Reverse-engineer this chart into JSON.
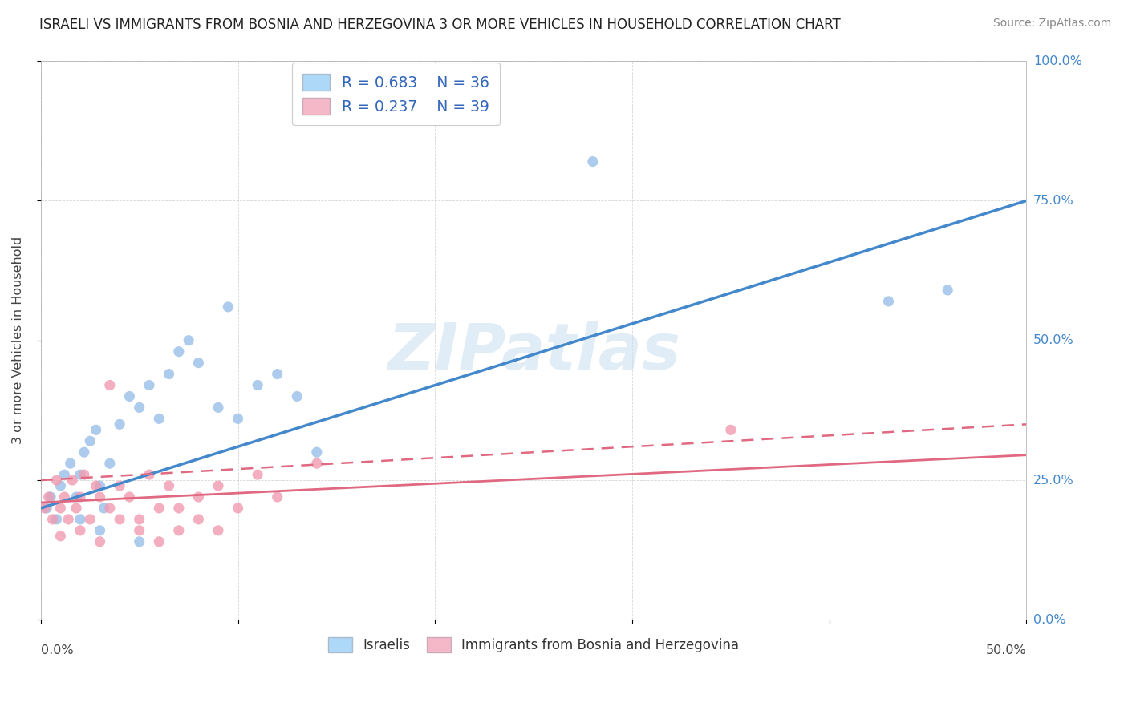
{
  "title": "ISRAELI VS IMMIGRANTS FROM BOSNIA AND HERZEGOVINA 3 OR MORE VEHICLES IN HOUSEHOLD CORRELATION CHART",
  "source": "Source: ZipAtlas.com",
  "ylabel": "3 or more Vehicles in Household",
  "ytick_labels": [
    "0.0%",
    "25.0%",
    "50.0%",
    "75.0%",
    "100.0%"
  ],
  "ytick_values": [
    0.0,
    25.0,
    50.0,
    75.0,
    100.0
  ],
  "xmin": 0.0,
  "xmax": 50.0,
  "ymin": 0.0,
  "ymax": 100.0,
  "legend_r1": "R = 0.683",
  "legend_n1": "N = 36",
  "legend_r2": "R = 0.237",
  "legend_n2": "N = 39",
  "blue_color": "#add8f7",
  "pink_color": "#f4b8c8",
  "blue_line_color": "#4488cc",
  "pink_line_color": "#e06880",
  "blue_scatter_color": "#99bfe8",
  "pink_scatter_color": "#f09ab0",
  "israelis_x": [
    0.3,
    0.5,
    0.8,
    1.0,
    1.2,
    1.5,
    1.8,
    2.0,
    2.2,
    2.5,
    2.8,
    3.0,
    3.2,
    3.5,
    4.0,
    4.5,
    5.0,
    5.5,
    6.0,
    6.5,
    7.0,
    8.0,
    9.0,
    10.0,
    11.0,
    12.0,
    13.0,
    14.0,
    28.0,
    43.0,
    46.0,
    5.0,
    3.0,
    7.5,
    9.5,
    2.0
  ],
  "israelis_y": [
    20.0,
    22.0,
    18.0,
    24.0,
    26.0,
    28.0,
    22.0,
    26.0,
    30.0,
    32.0,
    34.0,
    24.0,
    20.0,
    28.0,
    35.0,
    40.0,
    38.0,
    42.0,
    36.0,
    44.0,
    48.0,
    46.0,
    38.0,
    36.0,
    42.0,
    44.0,
    40.0,
    30.0,
    82.0,
    57.0,
    59.0,
    14.0,
    16.0,
    50.0,
    56.0,
    18.0
  ],
  "bosnia_x": [
    0.2,
    0.4,
    0.6,
    0.8,
    1.0,
    1.2,
    1.4,
    1.6,
    1.8,
    2.0,
    2.2,
    2.5,
    2.8,
    3.0,
    3.5,
    4.0,
    4.5,
    5.0,
    5.5,
    6.0,
    6.5,
    7.0,
    8.0,
    9.0,
    10.0,
    11.0,
    12.0,
    1.0,
    2.0,
    3.0,
    4.0,
    5.0,
    6.0,
    7.0,
    8.0,
    9.0,
    35.0,
    14.0,
    3.5
  ],
  "bosnia_y": [
    20.0,
    22.0,
    18.0,
    25.0,
    20.0,
    22.0,
    18.0,
    25.0,
    20.0,
    22.0,
    26.0,
    18.0,
    24.0,
    22.0,
    20.0,
    24.0,
    22.0,
    18.0,
    26.0,
    20.0,
    24.0,
    20.0,
    22.0,
    24.0,
    20.0,
    26.0,
    22.0,
    15.0,
    16.0,
    14.0,
    18.0,
    16.0,
    14.0,
    16.0,
    18.0,
    16.0,
    34.0,
    28.0,
    42.0
  ]
}
